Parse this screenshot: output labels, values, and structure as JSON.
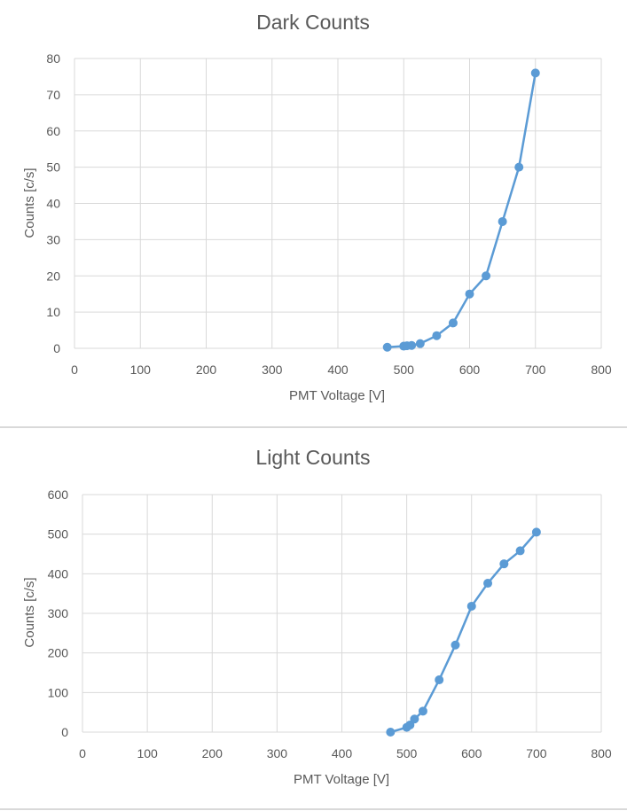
{
  "colors": {
    "series": "#5b9bd5",
    "grid": "#d9d9d9",
    "text": "#595959"
  },
  "chart_data": [
    {
      "type": "scatter",
      "title": "Dark Counts",
      "xlabel": "PMT Voltage [V]",
      "ylabel": "Counts [c/s]",
      "xlim": [
        0,
        800
      ],
      "ylim": [
        0,
        80
      ],
      "xticks": [
        0,
        100,
        200,
        300,
        400,
        500,
        600,
        700,
        800
      ],
      "yticks": [
        0,
        10,
        20,
        30,
        40,
        50,
        60,
        70,
        80
      ],
      "grid": true,
      "legend": "none",
      "series": [
        {
          "x": [
            475,
            500,
            505,
            512,
            525,
            550,
            575,
            600,
            625,
            650,
            675,
            700
          ],
          "y": [
            0.3,
            0.6,
            0.7,
            0.8,
            1.3,
            3.5,
            7,
            15,
            20,
            35,
            50,
            76
          ]
        }
      ]
    },
    {
      "type": "scatter",
      "title": "Light Counts",
      "xlabel": "PMT Voltage [V]",
      "ylabel": "Counts [c/s]",
      "xlim": [
        0,
        800
      ],
      "ylim": [
        0,
        600
      ],
      "xticks": [
        0,
        100,
        200,
        300,
        400,
        500,
        600,
        700,
        800
      ],
      "yticks": [
        0,
        100,
        200,
        300,
        400,
        500,
        600
      ],
      "grid": true,
      "legend": "none",
      "series": [
        {
          "x": [
            475,
            500,
            505,
            512,
            525,
            550,
            575,
            600,
            625,
            650,
            675,
            700
          ],
          "y": [
            0,
            12,
            18,
            33,
            53,
            132,
            220,
            318,
            376,
            425,
            458,
            505
          ]
        }
      ]
    }
  ]
}
